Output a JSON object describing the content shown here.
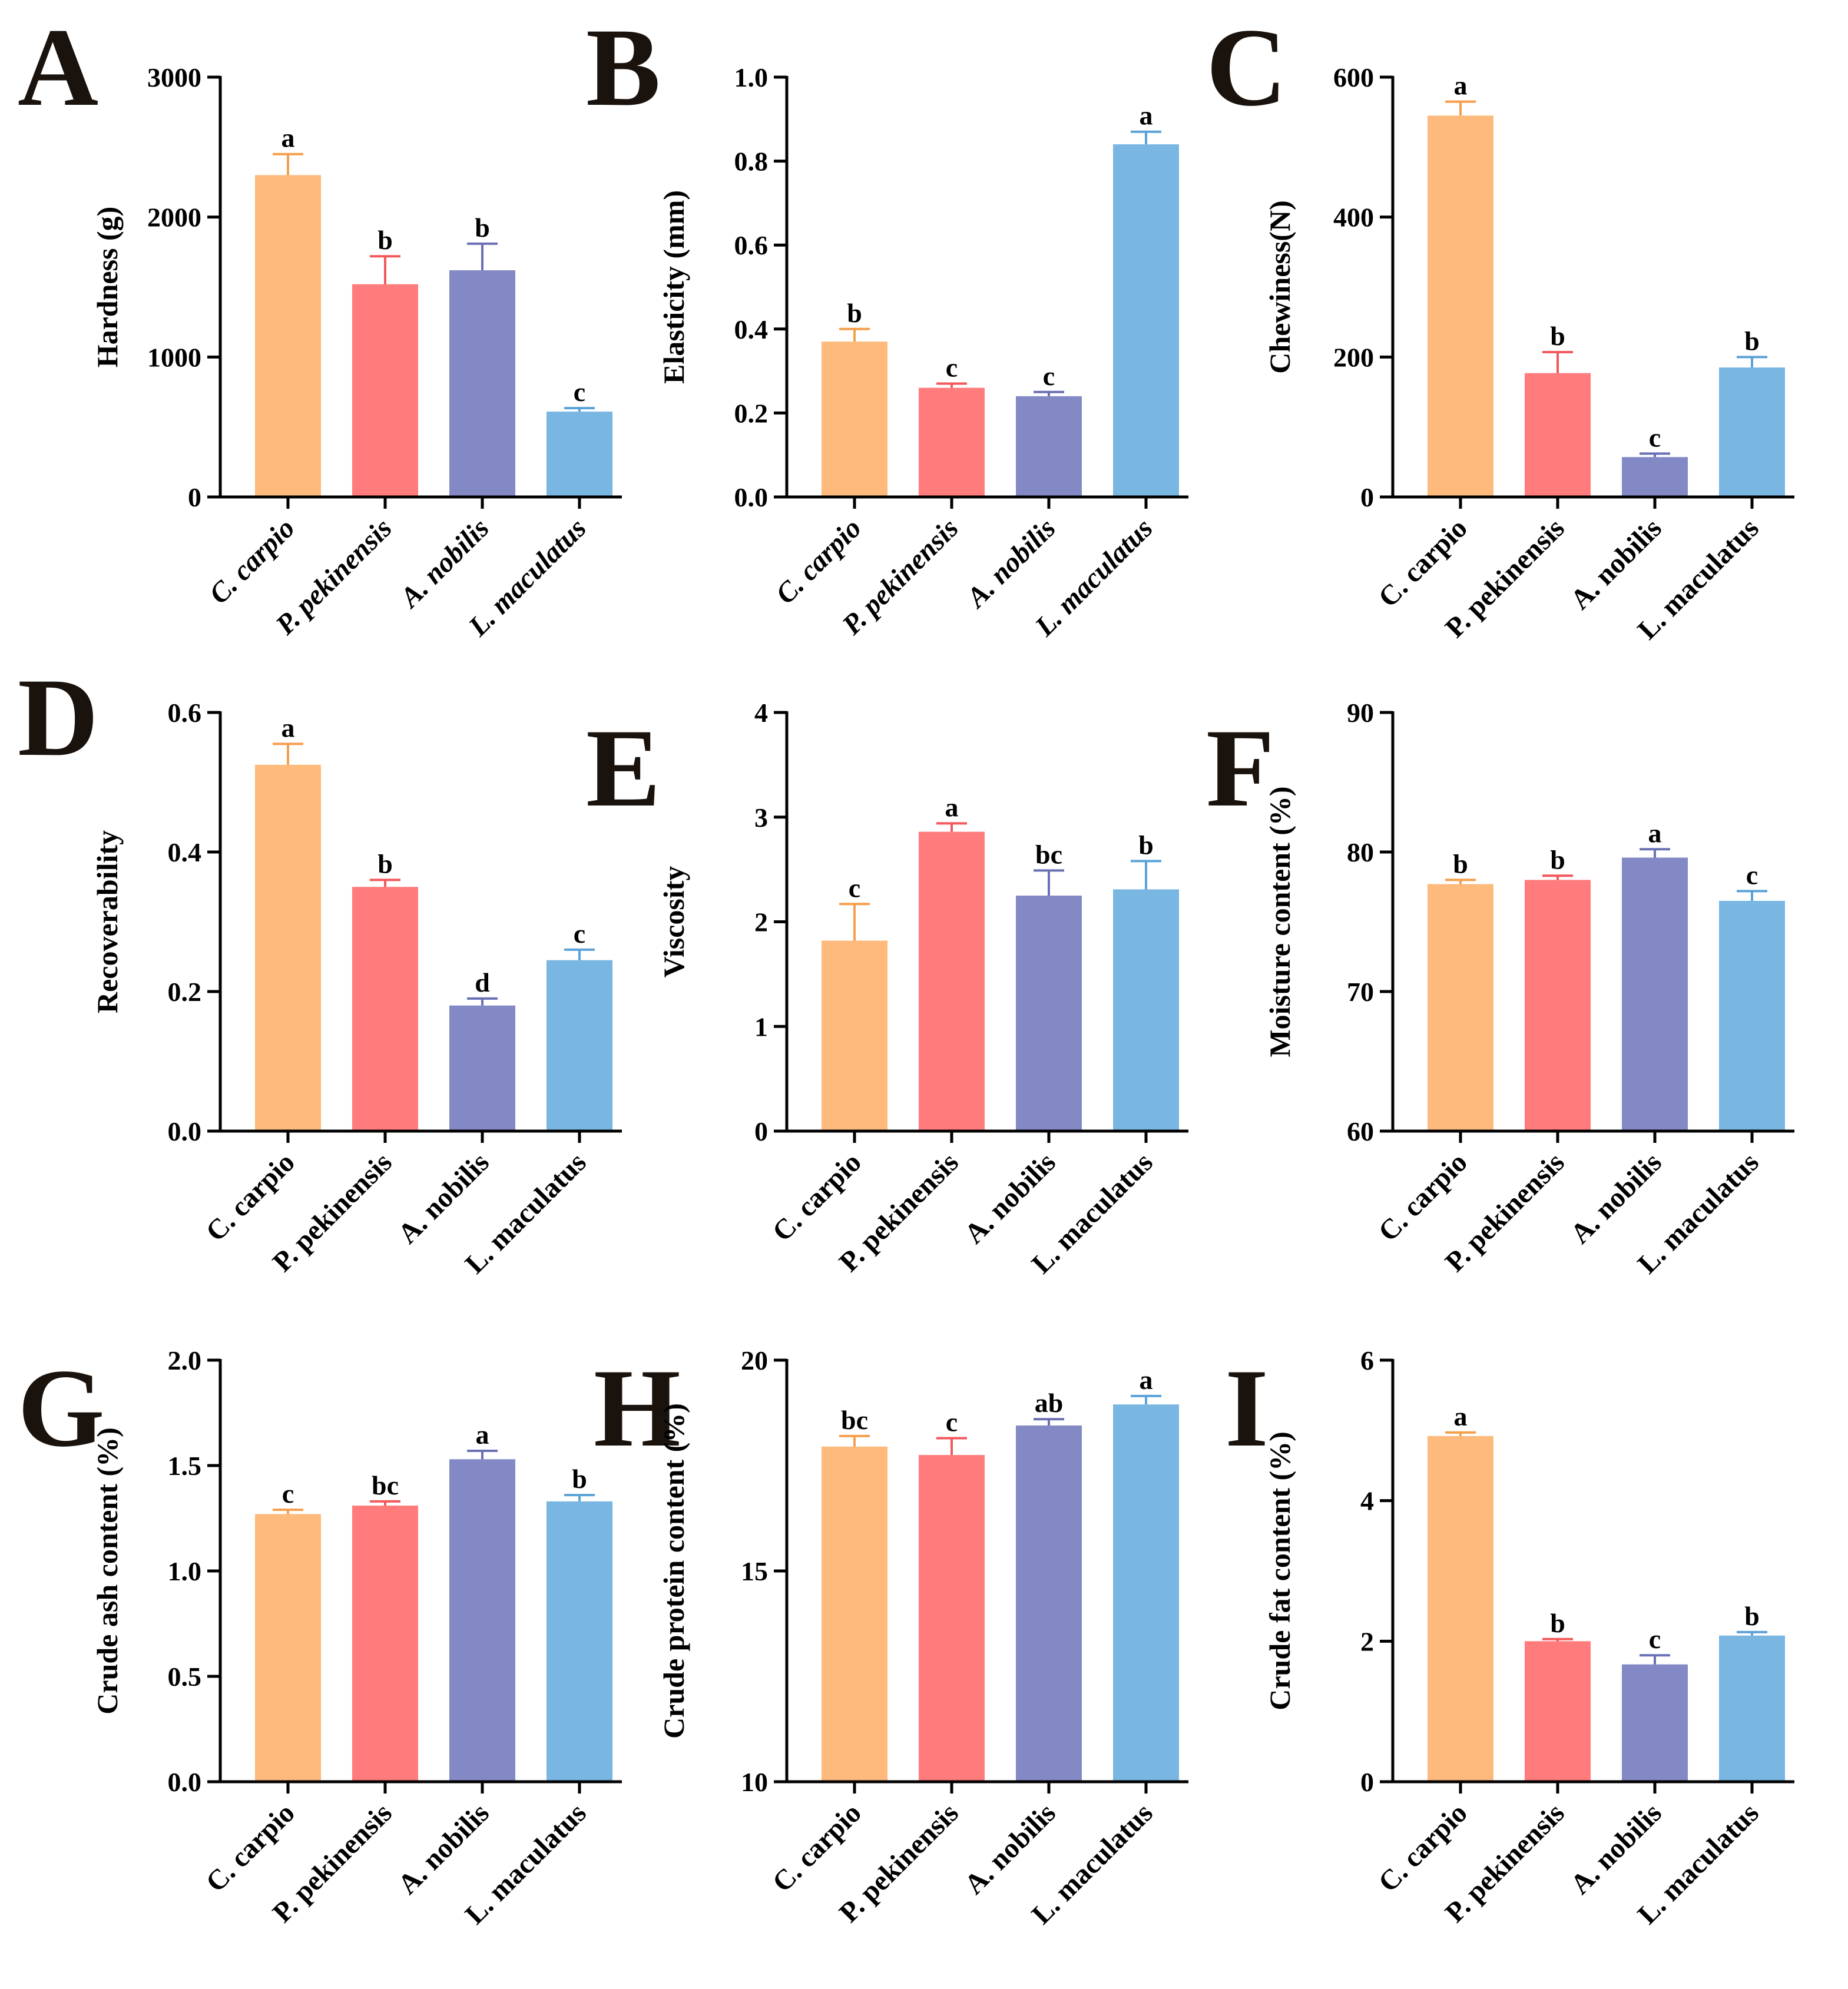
{
  "figure": {
    "categories": [
      "C. carpio",
      "P. pekinensis",
      "A. nobilis",
      "L. maculatus"
    ],
    "colors": [
      "#FDBA7C",
      "#FF7B7C",
      "#8389C5",
      "#79B7E2"
    ],
    "error_colors": [
      "#F59E4B",
      "#F2585C",
      "#6A70B3",
      "#5AA2D8"
    ]
  },
  "chart_data": [
    {
      "panel": "A",
      "type": "bar",
      "ylabel": "Hardness (g)",
      "ylim": [
        0,
        3000
      ],
      "yticks": [
        0,
        1000,
        2000,
        3000
      ],
      "ytick_labels": [
        "0",
        "1000",
        "2000",
        "3000"
      ],
      "categories": [
        "C. carpio",
        "P. pekinensis",
        "A. nobilis",
        "L. maculatus"
      ],
      "italic_categories": true,
      "values": [
        2300,
        1520,
        1620,
        610
      ],
      "errors": [
        150,
        200,
        190,
        25
      ],
      "significance": [
        "a",
        "b",
        "b",
        "c"
      ]
    },
    {
      "panel": "B",
      "type": "bar",
      "ylabel": "Elasticity (mm)",
      "ylim": [
        0,
        1.0
      ],
      "yticks": [
        0,
        0.2,
        0.4,
        0.6,
        0.8,
        1.0
      ],
      "ytick_labels": [
        "0.0",
        "0.2",
        "0.4",
        "0.6",
        "0.8",
        "1.0"
      ],
      "categories": [
        "C. carpio",
        "P. pekinensis",
        "A. nobilis",
        "L. maculatus"
      ],
      "italic_categories": true,
      "values": [
        0.37,
        0.26,
        0.24,
        0.84
      ],
      "errors": [
        0.03,
        0.01,
        0.01,
        0.03
      ],
      "significance": [
        "b",
        "c",
        "c",
        "a"
      ]
    },
    {
      "panel": "C",
      "type": "bar",
      "ylabel": "Chewiness(N)",
      "ylim": [
        0,
        600
      ],
      "yticks": [
        0,
        200,
        400,
        600
      ],
      "ytick_labels": [
        "0",
        "200",
        "400",
        "600"
      ],
      "categories": [
        "C. carpio",
        "P. pekinensis",
        "A. nobilis",
        "L. maculatus"
      ],
      "italic_categories": false,
      "values": [
        545,
        177,
        57,
        185
      ],
      "errors": [
        20,
        30,
        5,
        15
      ],
      "significance": [
        "a",
        "b",
        "c",
        "b"
      ]
    },
    {
      "panel": "D",
      "type": "bar",
      "ylabel": "Recoverability",
      "ylim": [
        0,
        0.6
      ],
      "yticks": [
        0,
        0.2,
        0.4,
        0.6
      ],
      "ytick_labels": [
        "0.0",
        "0.2",
        "0.4",
        "0.6"
      ],
      "categories": [
        "C. carpio",
        "P. pekinensis",
        "A. nobilis",
        "L. maculatus"
      ],
      "italic_categories": false,
      "values": [
        0.525,
        0.35,
        0.18,
        0.245
      ],
      "errors": [
        0.03,
        0.01,
        0.01,
        0.015
      ],
      "significance": [
        "a",
        "b",
        "d",
        "c"
      ]
    },
    {
      "panel": "E",
      "type": "bar",
      "ylabel": "Viscosity",
      "ylim": [
        0,
        4
      ],
      "yticks": [
        0,
        1,
        2,
        3,
        4
      ],
      "ytick_labels": [
        "0",
        "1",
        "2",
        "3",
        "4"
      ],
      "categories": [
        "C. carpio",
        "P. pekinensis",
        "A. nobilis",
        "L. maculatus"
      ],
      "italic_categories": false,
      "values": [
        1.82,
        2.86,
        2.25,
        2.31
      ],
      "errors": [
        0.35,
        0.08,
        0.24,
        0.27
      ],
      "significance": [
        "c",
        "a",
        "bc",
        "b"
      ]
    },
    {
      "panel": "F",
      "type": "bar",
      "ylabel": "Moisture content (%)",
      "ylim": [
        60,
        90
      ],
      "yticks": [
        60,
        70,
        80,
        90
      ],
      "ytick_labels": [
        "60",
        "70",
        "80",
        "90"
      ],
      "categories": [
        "C. carpio",
        "P. pekinensis",
        "A. nobilis",
        "L. maculatus"
      ],
      "italic_categories": false,
      "values": [
        77.7,
        78.0,
        79.6,
        76.5
      ],
      "errors": [
        0.3,
        0.3,
        0.6,
        0.7
      ],
      "significance": [
        "b",
        "b",
        "a",
        "c"
      ]
    },
    {
      "panel": "G",
      "type": "bar",
      "ylabel": "Crude ash content (%)",
      "ylim": [
        0,
        2.0
      ],
      "yticks": [
        0,
        0.5,
        1.0,
        1.5,
        2.0
      ],
      "ytick_labels": [
        "0.0",
        "0.5",
        "1.0",
        "1.5",
        "2.0"
      ],
      "categories": [
        "C. carpio",
        "P. pekinensis",
        "A. nobilis",
        "L. maculatus"
      ],
      "italic_categories": false,
      "values": [
        1.27,
        1.31,
        1.53,
        1.33
      ],
      "errors": [
        0.02,
        0.02,
        0.04,
        0.03
      ],
      "significance": [
        "c",
        "bc",
        "a",
        "b"
      ]
    },
    {
      "panel": "H",
      "type": "bar",
      "ylabel": "Crude protein content (%)",
      "ylim": [
        10,
        20
      ],
      "yticks": [
        10,
        15,
        20
      ],
      "ytick_labels": [
        "10",
        "15",
        "20"
      ],
      "categories": [
        "C. carpio",
        "P. pekinensis",
        "A. nobilis",
        "L. maculatus"
      ],
      "italic_categories": false,
      "values": [
        17.95,
        17.75,
        18.45,
        18.95
      ],
      "errors": [
        0.25,
        0.4,
        0.15,
        0.2
      ],
      "significance": [
        "bc",
        "c",
        "ab",
        "a"
      ]
    },
    {
      "panel": "I",
      "type": "bar",
      "ylabel": "Crude fat content (%)",
      "ylim": [
        0,
        6
      ],
      "yticks": [
        0,
        2,
        4,
        6
      ],
      "ytick_labels": [
        "0",
        "2",
        "4",
        "6"
      ],
      "categories": [
        "C. carpio",
        "P. pekinensis",
        "A. nobilis",
        "L. maculatus"
      ],
      "italic_categories": false,
      "values": [
        4.92,
        2.0,
        1.67,
        2.08
      ],
      "errors": [
        0.05,
        0.03,
        0.13,
        0.05
      ],
      "significance": [
        "a",
        "b",
        "c",
        "b"
      ]
    }
  ]
}
